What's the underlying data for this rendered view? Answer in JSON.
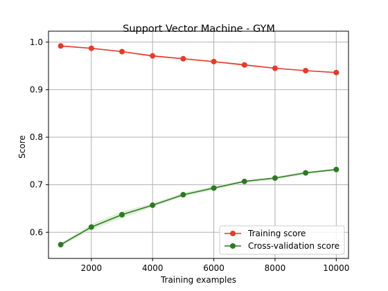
{
  "chart_data": {
    "type": "line",
    "title": "Support Vector Machine - GYM",
    "xlabel": "Training examples",
    "ylabel": "Score",
    "xlim": [
      600,
      10400
    ],
    "ylim": [
      0.545,
      1.023
    ],
    "x_ticks": [
      2000,
      4000,
      6000,
      8000,
      10000
    ],
    "y_ticks": [
      0.6,
      0.7,
      0.8,
      0.9,
      1.0
    ],
    "y_tick_labels": [
      "0.6",
      "0.7",
      "0.8",
      "0.9",
      "1.0"
    ],
    "grid": true,
    "legend_position": "lower-right",
    "x": [
      1000,
      2000,
      3000,
      4000,
      5000,
      6000,
      7000,
      8000,
      9000,
      10000
    ],
    "series": [
      {
        "name": "Training score",
        "color": "#e8392a",
        "band_color": "#f5b7b0",
        "values": [
          0.992,
          0.987,
          0.98,
          0.971,
          0.965,
          0.959,
          0.952,
          0.945,
          0.94,
          0.936
        ],
        "band": [
          0.001,
          0.001,
          0.001,
          0.002,
          0.001,
          0.001,
          0.002,
          0.001,
          0.001,
          0.001
        ]
      },
      {
        "name": "Cross-validation score",
        "color": "#2c7a24",
        "band_color": "#cfe8c4",
        "values": [
          0.574,
          0.611,
          0.637,
          0.657,
          0.679,
          0.693,
          0.707,
          0.714,
          0.725,
          0.732
        ],
        "band": [
          0.003,
          0.006,
          0.007,
          0.004,
          0.004,
          0.004,
          0.003,
          0.003,
          0.003,
          0.002
        ]
      }
    ]
  }
}
